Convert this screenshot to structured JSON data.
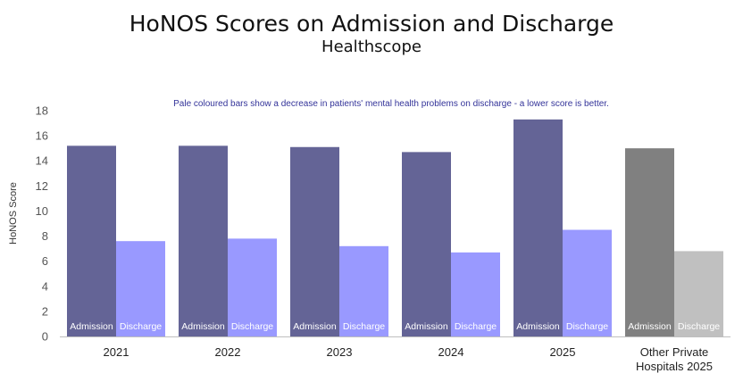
{
  "chart_data": {
    "type": "bar",
    "title": "HoNOS Scores on Admission and Discharge",
    "subtitle": "Healthscope",
    "annotation": "Pale coloured bars show a decrease in patients' mental health problems on discharge - a lower score is better.",
    "ylabel": "HoNOS Score",
    "ylim": [
      0,
      18
    ],
    "yticks": [
      0,
      2,
      4,
      6,
      8,
      10,
      12,
      14,
      16,
      18
    ],
    "grid": false,
    "categories": [
      [
        "2021"
      ],
      [
        "2022"
      ],
      [
        "2023"
      ],
      [
        "2024"
      ],
      [
        "2025"
      ],
      [
        "Other Private",
        "Hospitals 2025"
      ]
    ],
    "bar_labels": [
      "Admission",
      "Discharge"
    ],
    "admission": [
      15.2,
      15.2,
      15.1,
      14.7,
      17.3,
      15.0
    ],
    "discharge": [
      7.6,
      7.8,
      7.2,
      6.7,
      8.5,
      6.8
    ],
    "colors": {
      "admission": "#646496",
      "discharge": "#9999ff",
      "comparison_admission": "#808080",
      "comparison_discharge": "#c0c0c0",
      "annotation": "#333399",
      "axis": "#bfbfbf"
    }
  }
}
